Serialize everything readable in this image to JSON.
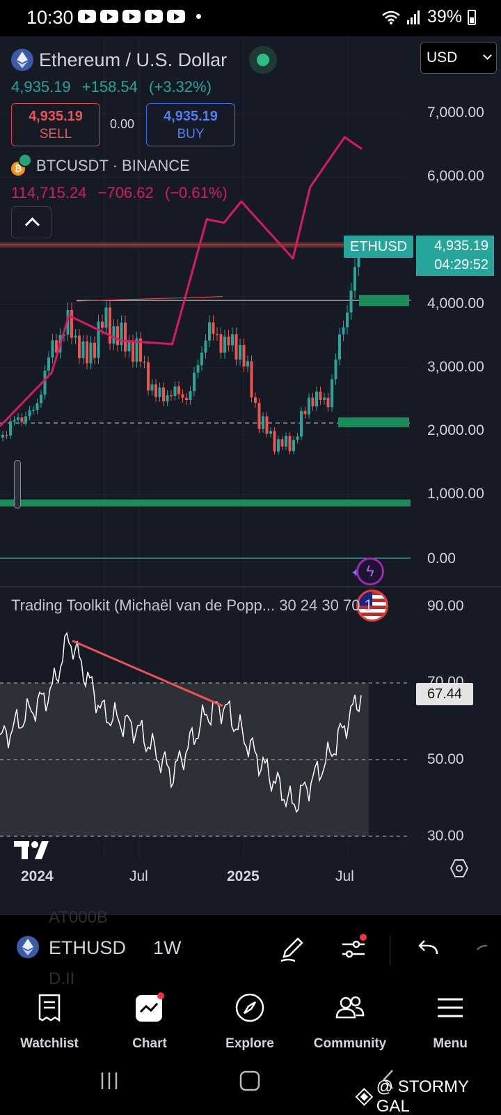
{
  "status_bar": {
    "time": "10:30",
    "battery_percent": "39%"
  },
  "chart_header": {
    "title": "Ethereum / U.S. Dollar",
    "last_price": "4,935.19",
    "change": "+158.54",
    "change_percent": "(+3.32%)",
    "currency": "USD",
    "sell_price": "4,935.19",
    "sell_label": "SELL",
    "spread": "0.00",
    "buy_price": "4,935.19",
    "buy_label": "BUY"
  },
  "compare_symbol": {
    "title": "BTCUSDT · BINANCE",
    "price": "114,715.24",
    "change": "−706.62",
    "change_percent": "(−0.61%)"
  },
  "price_axis": [
    "7,000.00",
    "6,000.00",
    "4,000.00",
    "3,000.00",
    "2,000.00",
    "1,000.00",
    "0.00"
  ],
  "indicator_axis": [
    "90.00",
    "70.00",
    "50.00",
    "30.00"
  ],
  "time_axis": [
    "2024",
    "Jul",
    "2025",
    "Jul"
  ],
  "price_tag": {
    "symbol": "ETHUSD",
    "price": "4,935.19",
    "countdown": "04:29:52"
  },
  "indicator": {
    "title": "Trading Toolkit (Michaël van de Popp... 30 24 30 70 1",
    "value": "67.44"
  },
  "toolbar": {
    "symbol": "ETHUSD",
    "interval": "1W",
    "ghost_top": "AT000B",
    "ghost_bottom": "D.II"
  },
  "bottom_nav": {
    "watchlist": "Watchlist",
    "chart": "Chart",
    "explore": "Explore",
    "community": "Community",
    "menu": "Menu"
  },
  "watermark": "@ STORMY GAL",
  "colors": {
    "up": "#26a69a",
    "down": "#ef5350",
    "compare_line": "#d81b60",
    "background": "#161a25"
  },
  "chart_data": {
    "type": "candlestick",
    "symbol": "ETHUSD",
    "interval": "1W",
    "x_range": [
      "2023-11",
      "2025-08"
    ],
    "ylim": [
      0,
      7500
    ],
    "close_series": [
      {
        "t": "2023-11",
        "v": 1900
      },
      {
        "t": "2023-12",
        "v": 2200
      },
      {
        "t": "2024-01",
        "v": 2300
      },
      {
        "t": "2024-02",
        "v": 3300
      },
      {
        "t": "2024-03",
        "v": 3700
      },
      {
        "t": "2024-04",
        "v": 3100
      },
      {
        "t": "2024-05",
        "v": 3750
      },
      {
        "t": "2024-06",
        "v": 3450
      },
      {
        "t": "2024-07",
        "v": 3250
      },
      {
        "t": "2024-08",
        "v": 2550
      },
      {
        "t": "2024-09",
        "v": 2600
      },
      {
        "t": "2024-10",
        "v": 2550
      },
      {
        "t": "2024-11",
        "v": 3600
      },
      {
        "t": "2024-12",
        "v": 3400
      },
      {
        "t": "2025-01",
        "v": 3300
      },
      {
        "t": "2025-02",
        "v": 2200
      },
      {
        "t": "2025-03",
        "v": 1800
      },
      {
        "t": "2025-04",
        "v": 1800
      },
      {
        "t": "2025-05",
        "v": 2550
      },
      {
        "t": "2025-06",
        "v": 2450
      },
      {
        "t": "2025-07",
        "v": 3800
      },
      {
        "t": "2025-08",
        "v": 4935
      }
    ],
    "compare_series": {
      "name": "BTCUSDT · BINANCE",
      "points": [
        {
          "t": "2023-11",
          "v": 37000
        },
        {
          "t": "2024-02",
          "v": 52000
        },
        {
          "t": "2024-03",
          "v": 68000
        },
        {
          "t": "2024-06",
          "v": 61000
        },
        {
          "t": "2024-09",
          "v": 60000
        },
        {
          "t": "2024-11",
          "v": 95000
        },
        {
          "t": "2024-12",
          "v": 94000
        },
        {
          "t": "2025-01",
          "v": 100000
        },
        {
          "t": "2025-04",
          "v": 84000
        },
        {
          "t": "2025-05",
          "v": 104000
        },
        {
          "t": "2025-07",
          "v": 118000
        },
        {
          "t": "2025-08",
          "v": 114715
        }
      ]
    },
    "horizontal_levels": [
      4935,
      4060,
      2130,
      860,
      0
    ],
    "indicator_series": {
      "name": "Trading Toolkit",
      "ylim": [
        20,
        100
      ],
      "points": [
        {
          "t": "2023-11",
          "v": 55
        },
        {
          "t": "2024-02",
          "v": 68
        },
        {
          "t": "2024-03",
          "v": 82
        },
        {
          "t": "2024-05",
          "v": 62
        },
        {
          "t": "2024-07",
          "v": 58
        },
        {
          "t": "2024-09",
          "v": 46
        },
        {
          "t": "2024-11",
          "v": 62
        },
        {
          "t": "2024-12",
          "v": 64
        },
        {
          "t": "2025-02",
          "v": 50
        },
        {
          "t": "2025-04",
          "v": 38
        },
        {
          "t": "2025-06",
          "v": 50
        },
        {
          "t": "2025-08",
          "v": 67.44
        }
      ]
    }
  }
}
